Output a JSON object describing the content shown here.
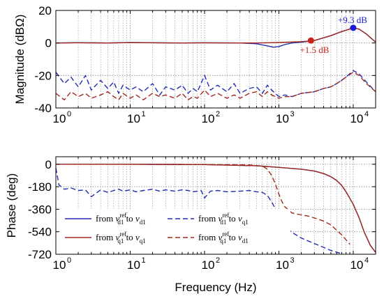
{
  "chart_data": [
    {
      "type": "line",
      "xscale": "log",
      "xlim": [
        1,
        20000
      ],
      "ylim": [
        -40,
        20
      ],
      "ylabel": "Magnitude (dBΩ)",
      "xlabel": "",
      "grid": true,
      "x_tick_labels": [
        "10",
        "10",
        "10",
        "10",
        "10"
      ],
      "x_tick_exponents": [
        "0",
        "1",
        "2",
        "3",
        "4"
      ],
      "y_tick_labels": [
        "20",
        "0",
        "-20",
        "-40"
      ],
      "series": [
        {
          "color": "#1f2db0",
          "style": "solid",
          "x": [
            1,
            2,
            5,
            10,
            50,
            100,
            300,
            500,
            700,
            850,
            1000,
            1200,
            1500,
            2000,
            3000,
            5000,
            7000,
            10000,
            12000,
            15000,
            20000
          ],
          "y": [
            0,
            0.2,
            0,
            0.3,
            0,
            0.1,
            0,
            -0.5,
            -1.8,
            -2.6,
            -2.2,
            -1.0,
            0,
            0.5,
            1.5,
            4.5,
            7.0,
            9.3,
            8.5,
            5.5,
            0.5
          ]
        },
        {
          "color": "#a0281c",
          "style": "solid",
          "x": [
            1,
            2,
            5,
            10,
            50,
            100,
            300,
            500,
            1000,
            2000,
            3000,
            5000,
            7000,
            10000,
            12000,
            15000,
            20000
          ],
          "y": [
            0,
            0.1,
            0,
            0.2,
            0,
            0.1,
            0,
            0,
            0.3,
            0.8,
            1.5,
            4.5,
            7.0,
            9.2,
            8.5,
            5.5,
            0.5
          ]
        },
        {
          "color": "#1f2db0",
          "style": "dashed",
          "x": [
            1,
            1.3,
            1.6,
            2,
            2.5,
            3,
            4,
            5,
            6,
            7,
            8,
            10,
            12,
            15,
            20,
            25,
            30,
            40,
            50,
            60,
            70,
            80,
            100,
            120,
            150,
            200,
            250,
            300,
            400,
            500,
            600,
            700,
            800,
            1000,
            1200,
            1500,
            2000,
            3000,
            4000,
            5000,
            6000,
            7000,
            8000,
            10000,
            12000,
            15000,
            20000
          ],
          "y": [
            -18,
            -25,
            -21,
            -27,
            -20,
            -29,
            -23,
            -28,
            -24,
            -31,
            -26,
            -29,
            -27,
            -30,
            -25,
            -32,
            -27,
            -29,
            -26,
            -31,
            -28,
            -30,
            -20,
            -29,
            -26,
            -30,
            -25,
            -31,
            -28,
            -27,
            -31,
            -26,
            -29,
            -33,
            -32,
            -33,
            -31,
            -30,
            -28,
            -27,
            -25,
            -23,
            -21,
            -17,
            -19,
            -24,
            -30
          ]
        },
        {
          "color": "#a0281c",
          "style": "dashed",
          "x": [
            1,
            1.3,
            1.6,
            2,
            2.5,
            3,
            4,
            5,
            6,
            7,
            8,
            10,
            12,
            15,
            20,
            25,
            30,
            40,
            50,
            60,
            70,
            80,
            100,
            120,
            150,
            200,
            250,
            300,
            400,
            500,
            600,
            700,
            800,
            1000,
            1200,
            1500,
            2000,
            3000,
            4000,
            5000,
            6000,
            7000,
            8000,
            10000,
            12000,
            15000,
            20000
          ],
          "y": [
            -31,
            -35,
            -30,
            -33,
            -31,
            -34,
            -32,
            -30,
            -33,
            -35,
            -31,
            -34,
            -32,
            -35,
            -31,
            -33,
            -32,
            -34,
            -31,
            -35,
            -33,
            -34,
            -29,
            -33,
            -31,
            -34,
            -32,
            -34,
            -31,
            -30,
            -33,
            -30,
            -32,
            -34,
            -33,
            -33,
            -31,
            -30,
            -28,
            -27,
            -25,
            -23,
            -21,
            -18,
            -20,
            -25,
            -30
          ]
        }
      ],
      "annotations": [
        {
          "text": "+9.3 dB",
          "x": 10000,
          "y": 9.3,
          "color": "#1a1ad0"
        },
        {
          "text": "+1.5 dB",
          "x": 2700,
          "y": 1.5,
          "color": "#c8241a"
        }
      ]
    },
    {
      "type": "line",
      "xscale": "log",
      "xlim": [
        1,
        20000
      ],
      "ylim": [
        -720,
        60
      ],
      "ylabel": "Phase (deg)",
      "xlabel": "Frequency (Hz)",
      "grid": true,
      "x_tick_labels": [
        "10",
        "10",
        "10",
        "10",
        "10"
      ],
      "x_tick_exponents": [
        "0",
        "1",
        "2",
        "3",
        "4"
      ],
      "y_tick_labels": [
        "0",
        "-180",
        "-360",
        "-540",
        "-720"
      ],
      "series": [
        {
          "color": "#1f2db0",
          "style": "solid",
          "x": [
            1,
            10,
            100,
            500,
            1000,
            2000,
            3000,
            4000,
            5000,
            6000,
            7000,
            8000,
            10000,
            12000,
            14000,
            17000,
            20000
          ],
          "y": [
            0,
            0,
            -3,
            -12,
            -25,
            -40,
            -55,
            -75,
            -100,
            -130,
            -170,
            -220,
            -320,
            -430,
            -540,
            -650,
            -705
          ]
        },
        {
          "color": "#a0281c",
          "style": "solid",
          "x": [
            1,
            10,
            100,
            500,
            1000,
            2000,
            3000,
            4000,
            5000,
            6000,
            7000,
            8000,
            10000,
            12000,
            14000,
            17000,
            20000
          ],
          "y": [
            0,
            0,
            -3,
            -12,
            -25,
            -40,
            -55,
            -75,
            -100,
            -130,
            -170,
            -220,
            -320,
            -430,
            -540,
            -650,
            -705
          ]
        },
        {
          "color": "#1f2db0",
          "style": "dashed",
          "x": [
            1,
            1.1,
            1.3,
            1.6,
            2,
            2.5,
            3,
            4,
            5,
            6,
            7,
            8,
            10,
            12,
            15,
            20,
            25,
            30,
            40,
            50,
            60,
            70,
            80,
            90,
            100,
            120,
            150,
            200,
            300,
            400,
            500,
            600,
            700,
            800,
            900,
            1000,
            1200,
            1500,
            2000,
            3000,
            4000,
            5000,
            7000
          ],
          "y": [
            -30,
            -165,
            -200,
            -190,
            -210,
            -205,
            -260,
            -205,
            -225,
            -210,
            -200,
            -215,
            -205,
            -220,
            -210,
            -200,
            -215,
            -205,
            -215,
            -205,
            -210,
            -220,
            -215,
            -210,
            -270,
            -215,
            -210,
            -220,
            -215,
            -210,
            -220,
            -225,
            -250,
            -300,
            -360,
            -440,
            -500,
            -545,
            -590,
            -635,
            -665,
            -690,
            -715
          ]
        },
        {
          "color": "#a0281c",
          "style": "dashed",
          "x": [
            1,
            10,
            100,
            400,
            600,
            700,
            800,
            900,
            1000,
            1100,
            1200,
            1500,
            2000,
            2500,
            3000,
            4000,
            5000,
            7000,
            9000
          ],
          "y": [
            0,
            0,
            -2,
            -5,
            -15,
            -40,
            -90,
            -160,
            -240,
            -300,
            -340,
            -390,
            -405,
            -415,
            -430,
            -455,
            -485,
            -565,
            -640
          ]
        }
      ],
      "legend": {
        "placement": "lower-left",
        "entries": [
          {
            "prefix": "from ",
            "v1": "v",
            "v1_sup": "ref",
            "v1_sub": "d1",
            "mid": " to ",
            "v2": "v",
            "v2_sub": "d1",
            "color": "#1f2db0",
            "style": "solid"
          },
          {
            "prefix": "from ",
            "v1": "v",
            "v1_sup": "ref",
            "v1_sub": "d1",
            "mid": " to ",
            "v2": "v",
            "v2_sub": "q1",
            "color": "#1f2db0",
            "style": "dashed"
          },
          {
            "prefix": "from ",
            "v1": "v",
            "v1_sup": "ref",
            "v1_sub": "q1",
            "mid": " to ",
            "v2": "v",
            "v2_sub": "q1",
            "color": "#a0281c",
            "style": "solid"
          },
          {
            "prefix": "from ",
            "v1": "v",
            "v1_sup": "ref",
            "v1_sub": "q1",
            "mid": " to ",
            "v2": "v",
            "v2_sub": "d1",
            "color": "#a0281c",
            "style": "dashed"
          }
        ]
      }
    }
  ]
}
